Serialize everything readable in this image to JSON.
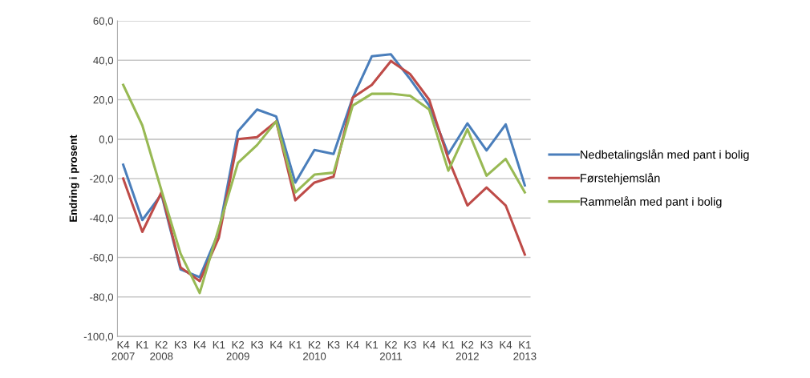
{
  "chart_data": {
    "type": "line",
    "ylabel": "Endring i prosent",
    "categories": [
      "K4\n2007",
      "K1",
      "K2\n2008",
      "K3",
      "K4",
      "K1",
      "K2\n2009",
      "K3",
      "K4",
      "K1",
      "K2\n2010",
      "K3",
      "K4",
      "K1",
      "K2\n2011",
      "K3",
      "K4",
      "K1",
      "K2\n2012",
      "K3",
      "K4",
      "K1\n2013"
    ],
    "series": [
      {
        "name": "Nedbetalingslån med pant i bolig",
        "color": "#4a7ebb",
        "values": [
          -13,
          -41,
          -28,
          -66,
          -70,
          -47,
          4,
          15,
          11.5,
          -22,
          -5.5,
          -7.5,
          21,
          42,
          43,
          30.5,
          17,
          -7.5,
          8,
          -5.7,
          7.5,
          -23.4
        ]
      },
      {
        "name": "Førstehjemslån",
        "color": "#be4b48",
        "values": [
          -20,
          -47,
          -27,
          -65,
          -72,
          -50,
          0,
          1,
          9,
          -31,
          -22,
          -19,
          21,
          27.5,
          39.6,
          33,
          20,
          -10,
          -33.6,
          -24.5,
          -33.6,
          -58.5
        ]
      },
      {
        "name": "Rammelån med pant i bolig",
        "color": "#98b954",
        "values": [
          27.5,
          7,
          -26,
          -58,
          -78,
          -45,
          -12,
          -3,
          9,
          -27,
          -18,
          -17,
          17,
          23,
          23,
          22,
          15,
          -16,
          5,
          -18.5,
          -10,
          -27
        ]
      }
    ],
    "ylim": [
      -100,
      60
    ],
    "yticks": [
      {
        "value": -100,
        "label": "-100,0"
      },
      {
        "value": -80,
        "label": "-80,0"
      },
      {
        "value": -60,
        "label": "-60,0"
      },
      {
        "value": -40,
        "label": "-40,0"
      },
      {
        "value": -20,
        "label": "-20,0"
      },
      {
        "value": 0,
        "label": "0,0"
      },
      {
        "value": 20,
        "label": "20,0"
      },
      {
        "value": 40,
        "label": "40,0"
      },
      {
        "value": 60,
        "label": "60,0"
      }
    ],
    "grid": "y",
    "legend": "right",
    "marker": "none",
    "line_style": "solid"
  }
}
